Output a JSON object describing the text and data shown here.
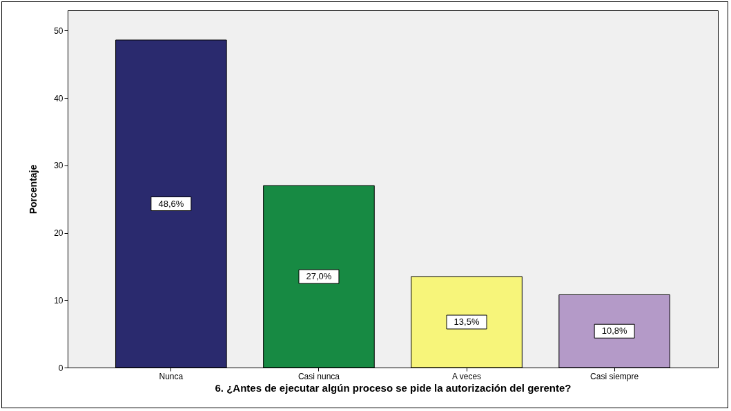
{
  "chart_data": {
    "type": "bar",
    "xlabel": "6. ¿Antes de ejecutar algún proceso se pide la autorización del gerente?",
    "ylabel": "Porcentaje",
    "categories": [
      "Nunca",
      "Casi nunca",
      "A veces",
      "Casi siempre"
    ],
    "values": [
      48.6,
      27.0,
      13.5,
      10.8
    ],
    "colors": [
      "#2a2a6e",
      "#178a43",
      "#f7f57a",
      "#b49ac8"
    ],
    "value_labels": [
      "48,6%",
      "27,0%",
      "13,5%",
      "10,8%"
    ],
    "ylim": [
      0,
      53
    ],
    "yticks": [
      0,
      10,
      20,
      30,
      40,
      50
    ]
  }
}
